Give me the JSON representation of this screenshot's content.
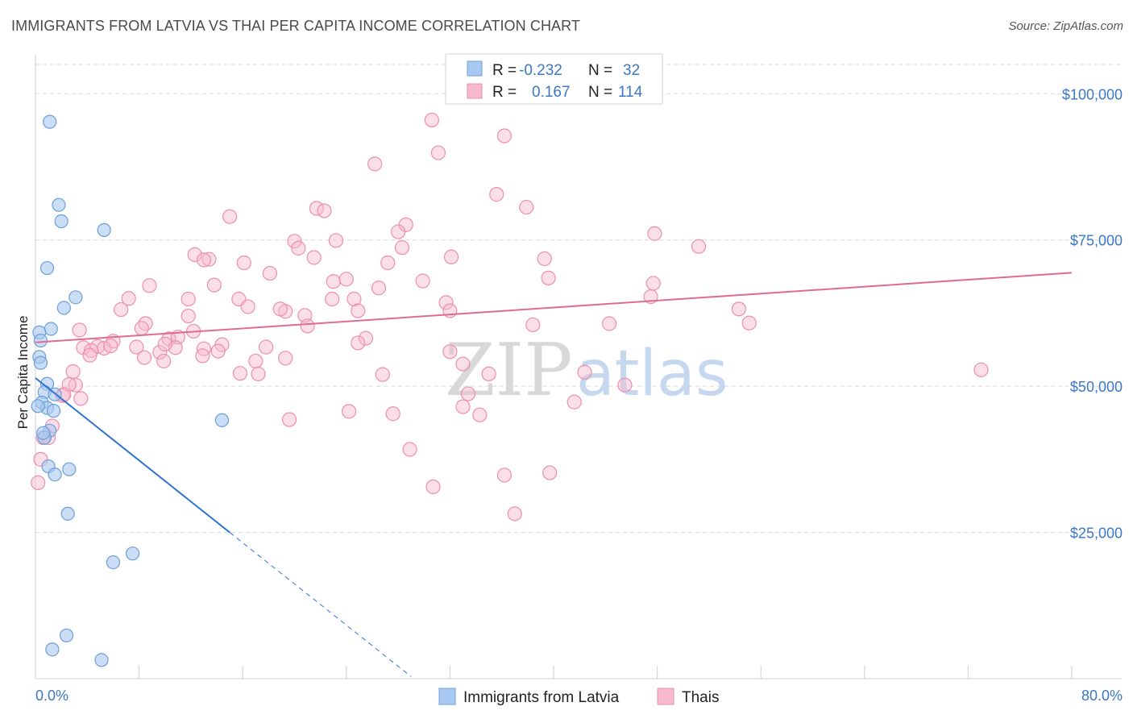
{
  "title": "IMMIGRANTS FROM LATVIA VS THAI PER CAPITA INCOME CORRELATION CHART",
  "source": "Source: ZipAtlas.com",
  "watermark": {
    "zip": "ZIP",
    "atlas": "atlas"
  },
  "colors": {
    "blue_fill": "#a9c8ef",
    "blue_stroke": "#6b9fd9",
    "blue_line": "#2f74d0",
    "pink_fill": "#f7b9cc",
    "pink_stroke": "#ec8fad",
    "pink_line": "#e06a94",
    "grid": "#d9d9d9",
    "tick_text": "#3a78c8"
  },
  "legend": {
    "rows": [
      {
        "r_label": "R =",
        "r_value": "-0.232",
        "n_label": "N =",
        "n_value": "32"
      },
      {
        "r_label": "R =",
        "r_value": "0.167",
        "n_label": "N =",
        "n_value": "114"
      }
    ]
  },
  "chart_data": {
    "type": "scatter",
    "title": "IMMIGRANTS FROM LATVIA VS THAI PER CAPITA INCOME CORRELATION CHART",
    "xlabel": "",
    "ylabel": "Per Capita Income",
    "xlim": [
      0,
      80
    ],
    "ylim": [
      0,
      105000
    ],
    "x_tick_labels": [
      "0.0%",
      "80.0%"
    ],
    "y_ticks": [
      25000,
      50000,
      75000,
      100000
    ],
    "y_tick_labels": [
      "$25,000",
      "$50,000",
      "$75,000",
      "$100,000"
    ],
    "grid": true,
    "legend_position": "top-center",
    "series": [
      {
        "name": "Immigrants from Latvia",
        "color": "#a9c8ef",
        "points": [
          [
            1.1,
            95200
          ],
          [
            1.8,
            81000
          ],
          [
            2.0,
            78200
          ],
          [
            5.3,
            76700
          ],
          [
            0.9,
            70200
          ],
          [
            3.1,
            65200
          ],
          [
            2.2,
            63400
          ],
          [
            1.2,
            59800
          ],
          [
            0.3,
            59200
          ],
          [
            0.4,
            57800
          ],
          [
            0.3,
            55000
          ],
          [
            0.4,
            54000
          ],
          [
            0.9,
            50400
          ],
          [
            0.7,
            49000
          ],
          [
            1.5,
            48600
          ],
          [
            0.5,
            47200
          ],
          [
            0.9,
            46300
          ],
          [
            1.4,
            45800
          ],
          [
            14.4,
            44200
          ],
          [
            1.1,
            42400
          ],
          [
            0.7,
            41200
          ],
          [
            1.0,
            36300
          ],
          [
            2.6,
            35800
          ],
          [
            1.5,
            34900
          ],
          [
            2.5,
            28200
          ],
          [
            7.5,
            21400
          ],
          [
            6.0,
            19900
          ],
          [
            2.4,
            7400
          ],
          [
            1.3,
            5000
          ],
          [
            5.1,
            3200
          ],
          [
            0.2,
            46600
          ],
          [
            0.6,
            42000
          ]
        ],
        "trend": {
          "x0": 0,
          "y0": 51400,
          "x1": 15.0,
          "y1": 25000,
          "dash_x_end": 29.0
        }
      },
      {
        "name": "Thais",
        "color": "#f7b9cc",
        "points": [
          [
            30.6,
            95500
          ],
          [
            36.2,
            92800
          ],
          [
            31.1,
            89900
          ],
          [
            26.2,
            88000
          ],
          [
            35.6,
            82800
          ],
          [
            37.9,
            80600
          ],
          [
            21.7,
            80400
          ],
          [
            22.3,
            80000
          ],
          [
            15.0,
            79000
          ],
          [
            28.6,
            77600
          ],
          [
            28.0,
            76400
          ],
          [
            47.8,
            76100
          ],
          [
            20.0,
            74800
          ],
          [
            23.2,
            74900
          ],
          [
            51.2,
            73900
          ],
          [
            20.3,
            73600
          ],
          [
            28.3,
            73700
          ],
          [
            12.3,
            72500
          ],
          [
            13.4,
            71700
          ],
          [
            32.1,
            72100
          ],
          [
            21.5,
            72000
          ],
          [
            39.3,
            71800
          ],
          [
            16.1,
            71100
          ],
          [
            27.2,
            71100
          ],
          [
            13.0,
            71600
          ],
          [
            18.1,
            69300
          ],
          [
            39.6,
            68500
          ],
          [
            24.0,
            68300
          ],
          [
            23.0,
            67900
          ],
          [
            29.9,
            68000
          ],
          [
            47.7,
            67600
          ],
          [
            8.8,
            67200
          ],
          [
            13.8,
            67300
          ],
          [
            26.5,
            66800
          ],
          [
            7.2,
            65000
          ],
          [
            15.7,
            64900
          ],
          [
            11.8,
            64900
          ],
          [
            22.9,
            64900
          ],
          [
            24.6,
            64900
          ],
          [
            47.5,
            65300
          ],
          [
            16.4,
            63600
          ],
          [
            31.7,
            64300
          ],
          [
            19.3,
            62800
          ],
          [
            24.9,
            62900
          ],
          [
            32.0,
            62900
          ],
          [
            18.9,
            63200
          ],
          [
            6.6,
            63100
          ],
          [
            11.8,
            62000
          ],
          [
            20.8,
            62100
          ],
          [
            54.3,
            63200
          ],
          [
            8.5,
            60700
          ],
          [
            55.1,
            60800
          ],
          [
            44.3,
            60700
          ],
          [
            38.4,
            60500
          ],
          [
            8.2,
            59900
          ],
          [
            3.4,
            59600
          ],
          [
            21.0,
            60300
          ],
          [
            12.2,
            59400
          ],
          [
            10.3,
            58100
          ],
          [
            11.0,
            58400
          ],
          [
            25.5,
            58200
          ],
          [
            24.9,
            57400
          ],
          [
            6.0,
            57700
          ],
          [
            14.4,
            57100
          ],
          [
            10.8,
            56600
          ],
          [
            7.8,
            56700
          ],
          [
            4.8,
            56800
          ],
          [
            3.7,
            56600
          ],
          [
            5.3,
            56500
          ],
          [
            13.0,
            56400
          ],
          [
            17.8,
            56700
          ],
          [
            4.3,
            56100
          ],
          [
            14.1,
            56000
          ],
          [
            9.6,
            55800
          ],
          [
            4.2,
            55300
          ],
          [
            12.9,
            55200
          ],
          [
            32.0,
            55900
          ],
          [
            19.3,
            54800
          ],
          [
            9.9,
            54300
          ],
          [
            17.0,
            54300
          ],
          [
            33.0,
            53800
          ],
          [
            2.9,
            52500
          ],
          [
            15.8,
            52200
          ],
          [
            35.0,
            52100
          ],
          [
            42.4,
            52400
          ],
          [
            73.0,
            52800
          ],
          [
            26.8,
            52000
          ],
          [
            17.2,
            52100
          ],
          [
            45.5,
            50200
          ],
          [
            3.1,
            50200
          ],
          [
            33.4,
            48700
          ],
          [
            2.1,
            48400
          ],
          [
            41.6,
            47300
          ],
          [
            33.0,
            46500
          ],
          [
            24.2,
            45700
          ],
          [
            34.3,
            45100
          ],
          [
            27.6,
            45300
          ],
          [
            19.6,
            44300
          ],
          [
            1.0,
            41200
          ],
          [
            28.9,
            39200
          ],
          [
            1.3,
            43200
          ],
          [
            0.6,
            41200
          ],
          [
            36.2,
            34800
          ],
          [
            39.7,
            35200
          ],
          [
            0.4,
            37500
          ],
          [
            30.7,
            32800
          ],
          [
            0.2,
            33500
          ],
          [
            37.0,
            28200
          ],
          [
            2.6,
            50300
          ],
          [
            3.5,
            47900
          ],
          [
            2.2,
            48600
          ],
          [
            8.4,
            54900
          ],
          [
            10.0,
            57200
          ],
          [
            5.8,
            56900
          ]
        ],
        "trend": {
          "x0": 0,
          "y0": 57500,
          "x1": 80,
          "y1": 69400
        }
      }
    ]
  }
}
